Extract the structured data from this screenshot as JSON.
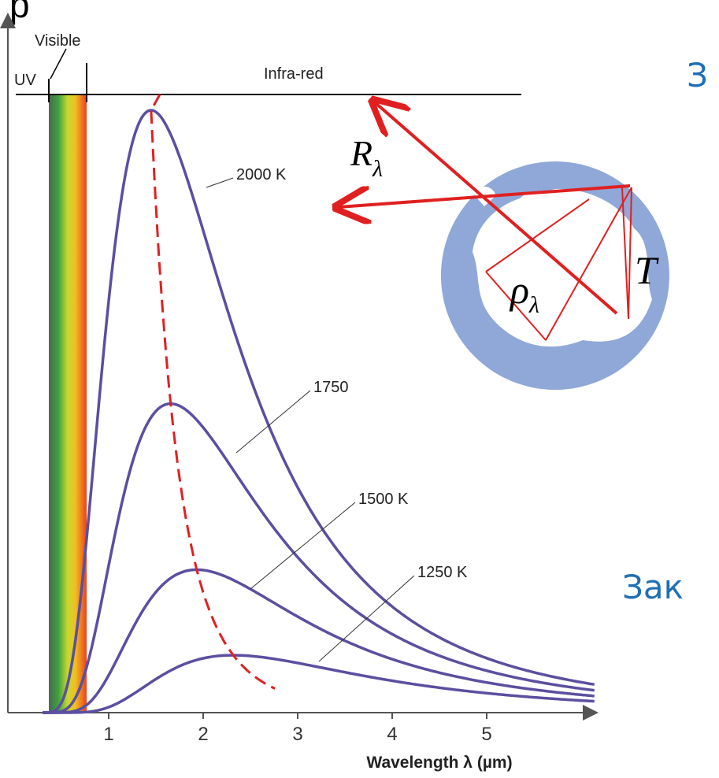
{
  "title_fragment": "р",
  "chart": {
    "labels": {
      "visible": "Visible",
      "uv": "UV",
      "infrared": "Infra-red"
    },
    "curves": [
      {
        "label": "2000 K"
      },
      {
        "label": "1750"
      },
      {
        "label": "1500 K"
      },
      {
        "label": "1250 K"
      }
    ],
    "x_ticks": [
      "1",
      "2",
      "3",
      "4",
      "5"
    ],
    "x_axis_label": "Wavelength λ (µm)"
  },
  "diagram": {
    "labels": {
      "radiance": "R",
      "radiance_sub": "λ",
      "density": "ρ",
      "density_sub": "λ",
      "temperature": "T"
    }
  },
  "side_text": [
    "З",
    "Зак"
  ]
}
